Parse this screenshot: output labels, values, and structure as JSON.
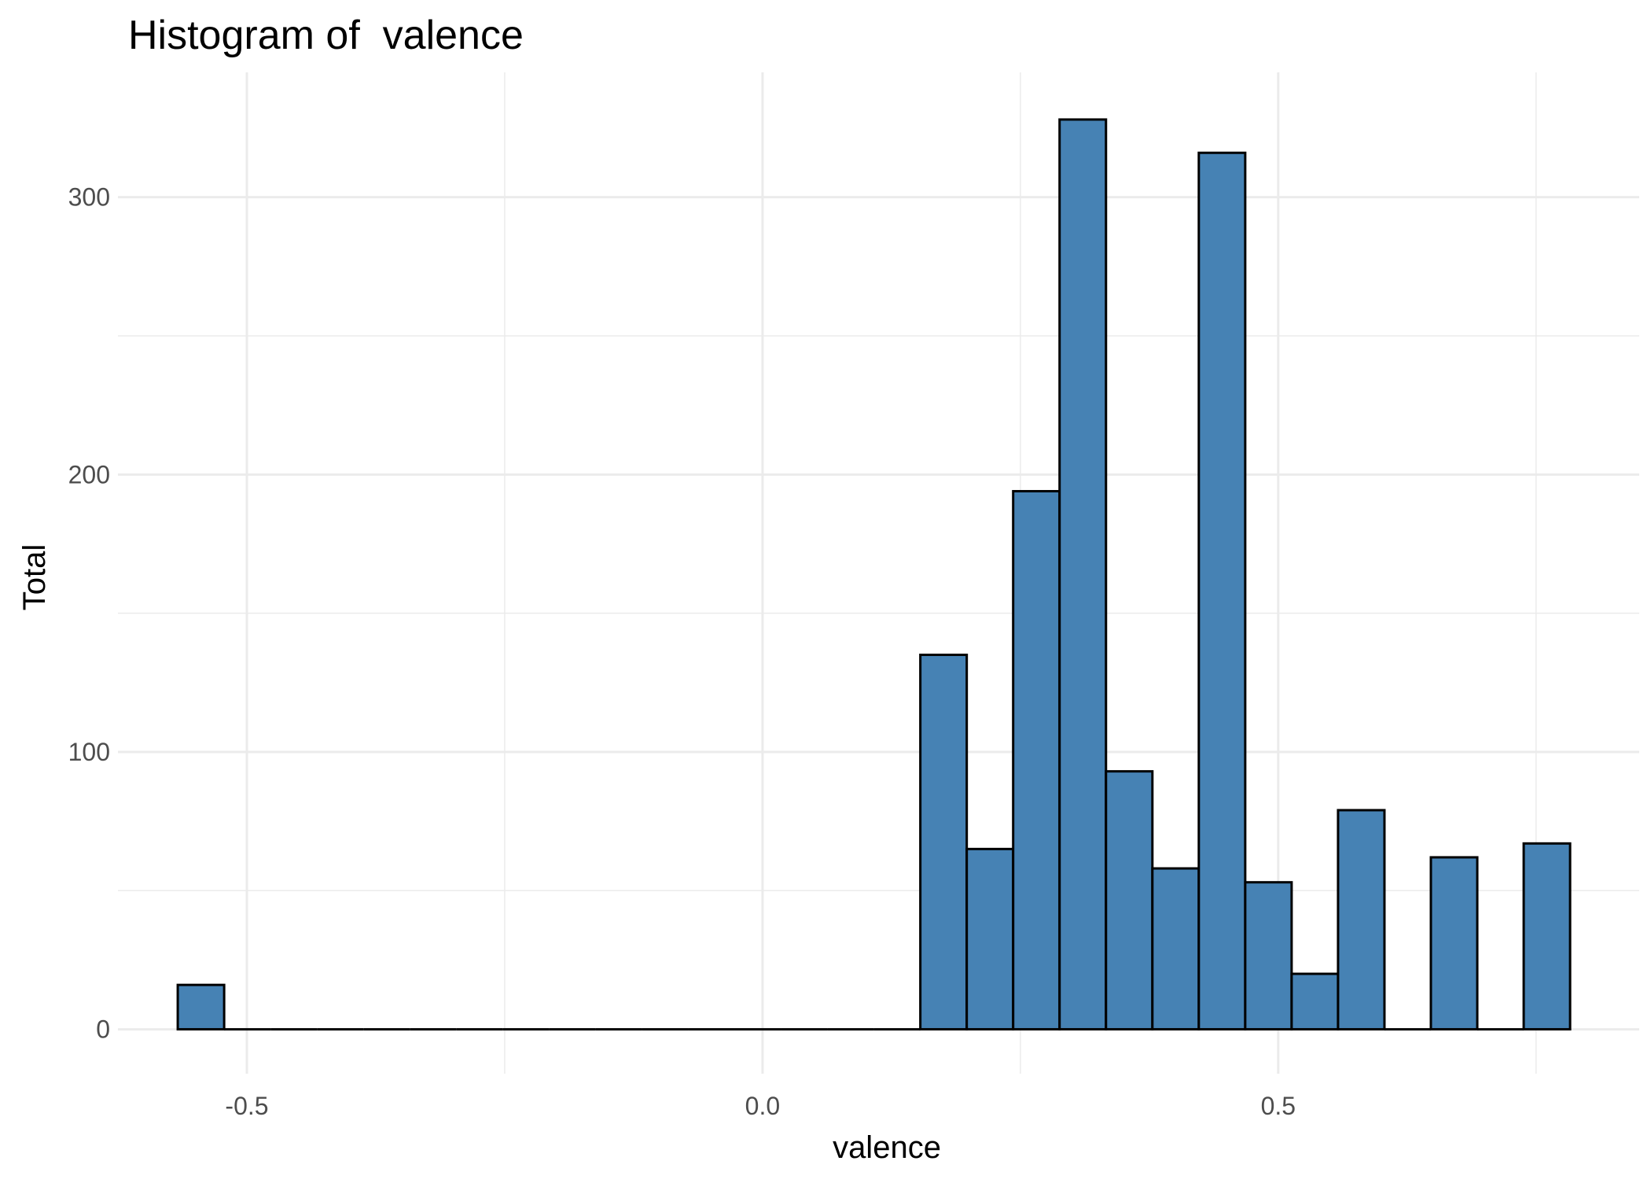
{
  "chart_data": {
    "type": "bar",
    "title": "Histogram of  valence",
    "xlabel": "valence",
    "ylabel": "Total",
    "x_ticks": [
      -0.5,
      0.0,
      0.5
    ],
    "x_tick_labels": [
      "-0.5",
      "0.0",
      "0.5"
    ],
    "y_ticks": [
      0,
      100,
      200,
      300
    ],
    "y_tick_labels": [
      "0",
      "100",
      "200",
      "300"
    ],
    "xlim": [
      -0.625,
      0.85
    ],
    "ylim": [
      -16,
      345
    ],
    "bin_width": 0.045,
    "bins": [
      {
        "center": -0.5445,
        "count": 16
      },
      {
        "center": -0.4995,
        "count": 0
      },
      {
        "center": -0.4545,
        "count": 0
      },
      {
        "center": -0.4095,
        "count": 0
      },
      {
        "center": -0.3645,
        "count": 0
      },
      {
        "center": -0.3195,
        "count": 0
      },
      {
        "center": -0.2745,
        "count": 0
      },
      {
        "center": -0.2295,
        "count": 0
      },
      {
        "center": -0.1845,
        "count": 0
      },
      {
        "center": -0.1395,
        "count": 0
      },
      {
        "center": -0.0945,
        "count": 0
      },
      {
        "center": -0.0495,
        "count": 0
      },
      {
        "center": -0.0045,
        "count": 0
      },
      {
        "center": 0.0405,
        "count": 0
      },
      {
        "center": 0.0855,
        "count": 0
      },
      {
        "center": 0.1305,
        "count": 0
      },
      {
        "center": 0.1755,
        "count": 135
      },
      {
        "center": 0.2205,
        "count": 65
      },
      {
        "center": 0.2655,
        "count": 194
      },
      {
        "center": 0.3105,
        "count": 328
      },
      {
        "center": 0.3555,
        "count": 93
      },
      {
        "center": 0.4005,
        "count": 58
      },
      {
        "center": 0.4455,
        "count": 316
      },
      {
        "center": 0.4905,
        "count": 53
      },
      {
        "center": 0.5355,
        "count": 20
      },
      {
        "center": 0.5805,
        "count": 79
      },
      {
        "center": 0.6255,
        "count": 0
      },
      {
        "center": 0.6705,
        "count": 62
      },
      {
        "center": 0.7155,
        "count": 0
      },
      {
        "center": 0.7605,
        "count": 67
      }
    ],
    "bar_fill": "#4682b4",
    "bar_outline": "#000000",
    "grid": true,
    "grid_color": "#ebebeb",
    "legend": "none"
  }
}
